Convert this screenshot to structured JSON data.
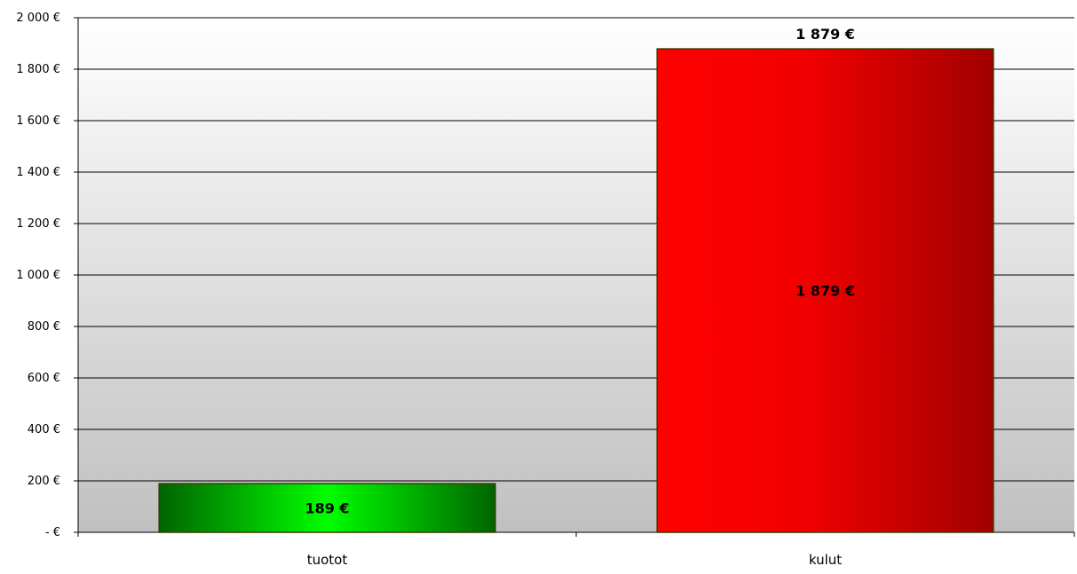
{
  "chart_data": {
    "type": "bar",
    "title": "",
    "xlabel": "",
    "ylabel": "",
    "categories": [
      "tuotot",
      "kulut"
    ],
    "values": [
      189,
      1879
    ],
    "value_labels": [
      "189 €",
      "1 879 €"
    ],
    "top_label": "1 879 €",
    "ylim": [
      0,
      2000
    ],
    "yticks": [
      0,
      200,
      400,
      600,
      800,
      1000,
      1200,
      1400,
      1600,
      1800,
      2000
    ],
    "ytick_labels": [
      "-   €",
      "200 €",
      "400 €",
      "600 €",
      "800 €",
      "1 000 €",
      "1 200 €",
      "1 400 €",
      "1 600 €",
      "1 800 €",
      "2 000 €"
    ],
    "grid": true,
    "legend": "none",
    "colors": {
      "tuotot": "#00c800",
      "kulut": "#ff0000",
      "background_top": "#ffffff",
      "background_bottom": "#c0c0c0",
      "gridline": "#000000"
    }
  }
}
